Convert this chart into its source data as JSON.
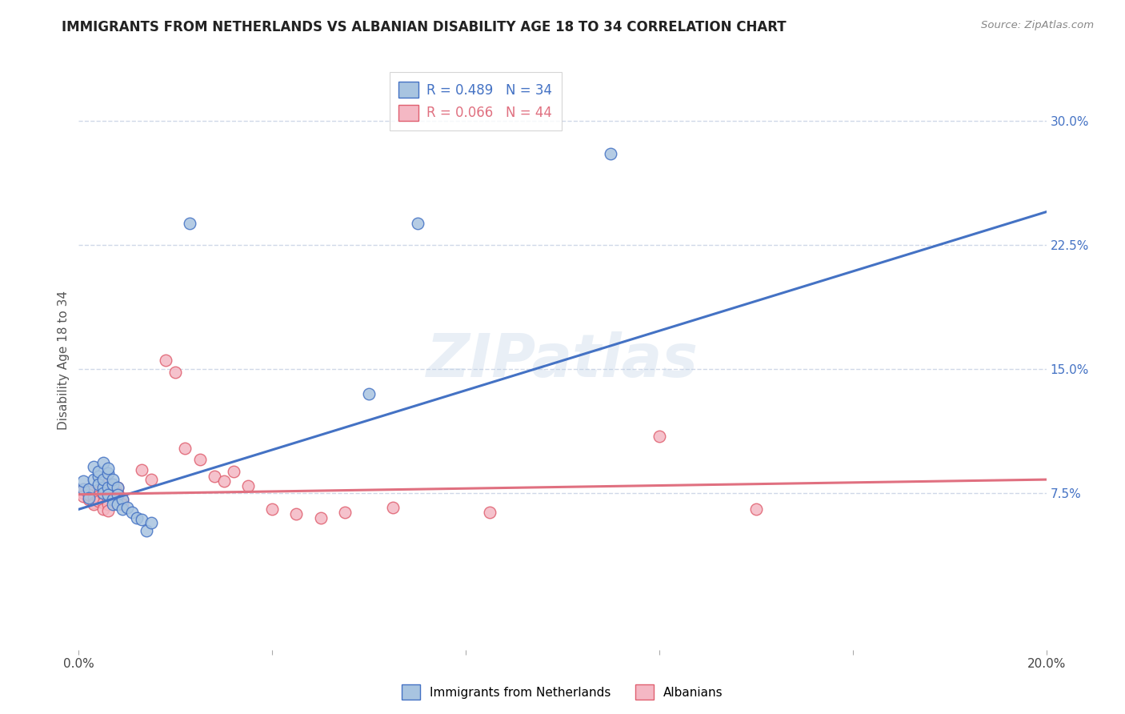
{
  "title": "IMMIGRANTS FROM NETHERLANDS VS ALBANIAN DISABILITY AGE 18 TO 34 CORRELATION CHART",
  "source": "Source: ZipAtlas.com",
  "ylabel": "Disability Age 18 to 34",
  "xlim": [
    0.0,
    0.2
  ],
  "ylim": [
    -0.02,
    0.33
  ],
  "xticks": [
    0.0,
    0.04,
    0.08,
    0.12,
    0.16,
    0.2
  ],
  "xticklabels": [
    "0.0%",
    "",
    "",
    "",
    "",
    "20.0%"
  ],
  "yticks_right": [
    0.075,
    0.15,
    0.225,
    0.3
  ],
  "ytick_labels_right": [
    "7.5%",
    "15.0%",
    "22.5%",
    "30.0%"
  ],
  "legend_label1": "Immigrants from Netherlands",
  "legend_label2": "Albanians",
  "blue_color": "#a8c4e0",
  "pink_color": "#f4b8c4",
  "blue_edge_color": "#4472c4",
  "pink_edge_color": "#e06070",
  "blue_line_color": "#4472c4",
  "pink_line_color": "#e07080",
  "right_axis_color": "#4472c4",
  "watermark": "ZIPatlas",
  "background_color": "#ffffff",
  "grid_color": "#d0d8e8",
  "blue_scatter": [
    [
      0.001,
      0.077
    ],
    [
      0.001,
      0.082
    ],
    [
      0.002,
      0.077
    ],
    [
      0.002,
      0.072
    ],
    [
      0.003,
      0.083
    ],
    [
      0.003,
      0.091
    ],
    [
      0.004,
      0.085
    ],
    [
      0.004,
      0.08
    ],
    [
      0.004,
      0.088
    ],
    [
      0.005,
      0.093
    ],
    [
      0.005,
      0.078
    ],
    [
      0.005,
      0.075
    ],
    [
      0.005,
      0.083
    ],
    [
      0.006,
      0.087
    ],
    [
      0.006,
      0.09
    ],
    [
      0.006,
      0.078
    ],
    [
      0.006,
      0.074
    ],
    [
      0.007,
      0.08
    ],
    [
      0.007,
      0.083
    ],
    [
      0.007,
      0.071
    ],
    [
      0.007,
      0.068
    ],
    [
      0.008,
      0.078
    ],
    [
      0.008,
      0.074
    ],
    [
      0.008,
      0.068
    ],
    [
      0.009,
      0.071
    ],
    [
      0.009,
      0.065
    ],
    [
      0.01,
      0.066
    ],
    [
      0.011,
      0.063
    ],
    [
      0.012,
      0.06
    ],
    [
      0.013,
      0.059
    ],
    [
      0.014,
      0.052
    ],
    [
      0.015,
      0.057
    ],
    [
      0.023,
      0.238
    ],
    [
      0.07,
      0.238
    ],
    [
      0.11,
      0.28
    ],
    [
      0.06,
      0.135
    ]
  ],
  "pink_scatter": [
    [
      0.001,
      0.075
    ],
    [
      0.001,
      0.077
    ],
    [
      0.001,
      0.073
    ],
    [
      0.002,
      0.076
    ],
    [
      0.002,
      0.071
    ],
    [
      0.002,
      0.074
    ],
    [
      0.003,
      0.072
    ],
    [
      0.003,
      0.069
    ],
    [
      0.003,
      0.068
    ],
    [
      0.004,
      0.076
    ],
    [
      0.004,
      0.073
    ],
    [
      0.004,
      0.07
    ],
    [
      0.005,
      0.074
    ],
    [
      0.005,
      0.069
    ],
    [
      0.005,
      0.065
    ],
    [
      0.006,
      0.08
    ],
    [
      0.006,
      0.075
    ],
    [
      0.006,
      0.071
    ],
    [
      0.006,
      0.068
    ],
    [
      0.006,
      0.064
    ],
    [
      0.007,
      0.077
    ],
    [
      0.007,
      0.072
    ],
    [
      0.008,
      0.078
    ],
    [
      0.008,
      0.075
    ],
    [
      0.009,
      0.071
    ],
    [
      0.009,
      0.068
    ],
    [
      0.013,
      0.089
    ],
    [
      0.015,
      0.083
    ],
    [
      0.018,
      0.155
    ],
    [
      0.02,
      0.148
    ],
    [
      0.022,
      0.102
    ],
    [
      0.025,
      0.095
    ],
    [
      0.028,
      0.085
    ],
    [
      0.03,
      0.082
    ],
    [
      0.032,
      0.088
    ],
    [
      0.035,
      0.079
    ],
    [
      0.04,
      0.065
    ],
    [
      0.045,
      0.062
    ],
    [
      0.05,
      0.06
    ],
    [
      0.055,
      0.063
    ],
    [
      0.065,
      0.066
    ],
    [
      0.085,
      0.063
    ],
    [
      0.12,
      0.109
    ],
    [
      0.14,
      0.065
    ]
  ],
  "blue_trendline": [
    [
      0.0,
      0.065
    ],
    [
      0.2,
      0.245
    ]
  ],
  "pink_trendline": [
    [
      0.0,
      0.074
    ],
    [
      0.2,
      0.083
    ]
  ]
}
